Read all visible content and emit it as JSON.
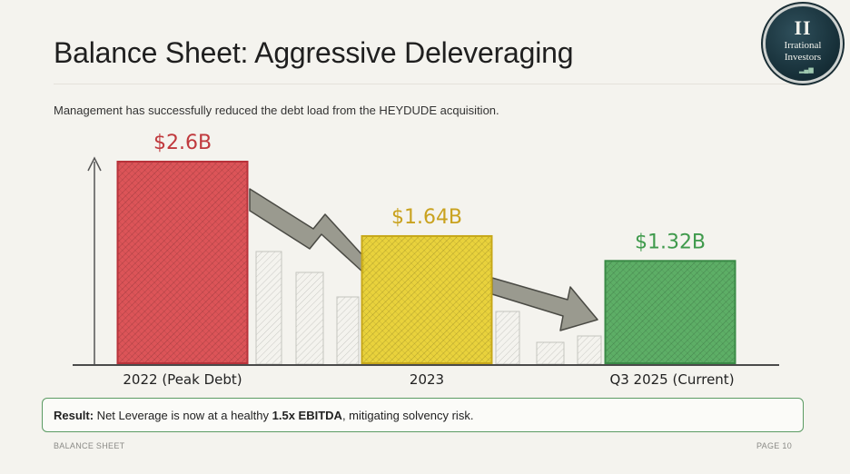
{
  "slide": {
    "title": "Balance Sheet: Aggressive Deleveraging",
    "subtitle": "Management has successfully reduced the debt load from the HEYDUDE acquisition."
  },
  "logo": {
    "mark": "II",
    "line1": "Irrational",
    "line2": "Investors"
  },
  "chart_data": {
    "type": "bar",
    "categories": [
      "2022 (Peak Debt)",
      "2023",
      "Q3 2025 (Current)"
    ],
    "values": [
      2.6,
      1.64,
      1.32
    ],
    "value_labels": [
      "$2.6B",
      "$1.64B",
      "$1.32B"
    ],
    "colors": [
      "#d9474b",
      "#e7cf2c",
      "#4fa85a"
    ],
    "title": "",
    "xlabel": "",
    "ylabel": "",
    "ylim": [
      0,
      2.6
    ],
    "grid": false
  },
  "result": {
    "label": "Result:",
    "text_before": " Net Leverage is now at a healthy ",
    "highlight": "1.5x EBITDA",
    "text_after": ", mitigating solvency risk."
  },
  "footer": {
    "left": "BALANCE SHEET",
    "right": "PAGE 10"
  }
}
